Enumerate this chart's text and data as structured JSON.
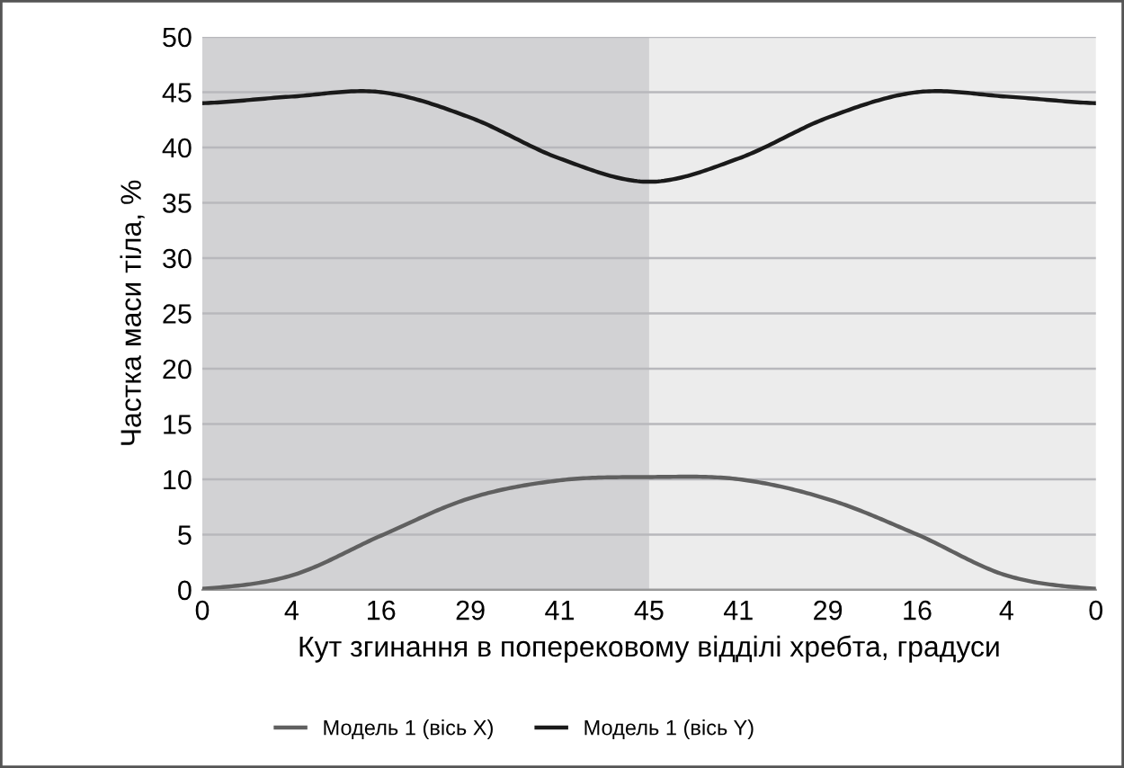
{
  "chart_data": {
    "type": "line",
    "xlabel": "Кут згинання в поперековому відділі хребта, градуси",
    "ylabel": "Частка маси тіла, %",
    "categories": [
      "0",
      "4",
      "16",
      "29",
      "41",
      "45",
      "41",
      "29",
      "16",
      "4",
      "0"
    ],
    "series": [
      {
        "name": "Модель 1 (вісь X)",
        "color": "#606060",
        "values": [
          0.1,
          1.3,
          4.9,
          8.3,
          9.9,
          10.2,
          10,
          8.2,
          5,
          1.3,
          0.1
        ]
      },
      {
        "name": "Модель 1 (вісь Y)",
        "color": "#1a1a1a",
        "values": [
          44,
          44.6,
          45,
          42.7,
          39,
          36.9,
          39,
          42.7,
          45,
          44.6,
          44
        ]
      }
    ],
    "bands": [
      {
        "axis": "x",
        "from": "0",
        "to": "45",
        "color": "#d2d2d4"
      }
    ],
    "ylim": [
      0,
      50
    ],
    "yticks": [
      0,
      5,
      10,
      15,
      20,
      25,
      30,
      35,
      40,
      45,
      50
    ],
    "grid": "y",
    "legend": "bottom",
    "line_style": "solid",
    "marker": "none"
  }
}
